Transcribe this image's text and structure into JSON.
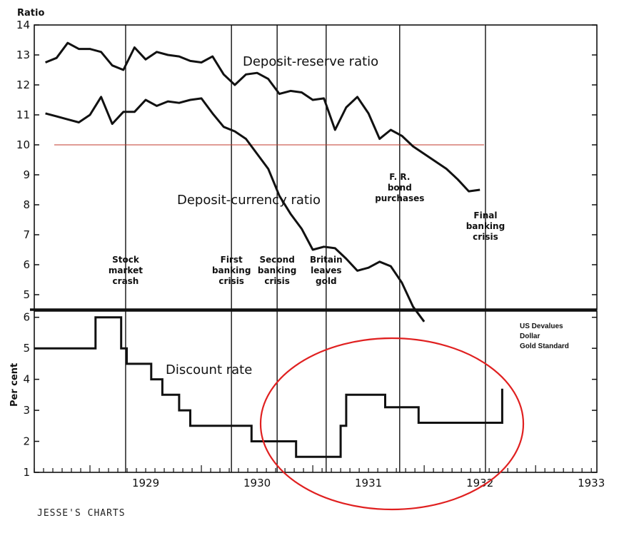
{
  "chart_data": {
    "type": "line",
    "top_panel": {
      "ylabel": "Ratio",
      "ylim": [
        4.5,
        14
      ],
      "y_ticks": [
        "14",
        "13",
        "12",
        "11",
        "10",
        "9",
        "8",
        "7",
        "6",
        "5"
      ],
      "series": [
        {
          "name": "Deposit-reserve ratio",
          "x": [
            1928.6,
            1928.7,
            1928.8,
            1928.9,
            1929.0,
            1929.1,
            1929.2,
            1929.3,
            1929.4,
            1929.5,
            1929.6,
            1929.7,
            1929.8,
            1929.9,
            1930.0,
            1930.1,
            1930.2,
            1930.3,
            1930.4,
            1930.5,
            1930.6,
            1930.7,
            1930.8,
            1930.9,
            1931.0,
            1931.1,
            1931.2,
            1931.3,
            1931.4,
            1931.5,
            1931.6,
            1931.7,
            1931.8,
            1931.9,
            1932.0,
            1932.1,
            1932.2,
            1932.3,
            1932.4,
            1932.5,
            1932.6,
            1932.7
          ],
          "values": [
            12.75,
            12.9,
            13.4,
            13.2,
            13.2,
            13.1,
            12.65,
            12.5,
            13.25,
            12.85,
            13.1,
            13.0,
            12.95,
            12.8,
            12.75,
            12.95,
            12.35,
            12.0,
            12.35,
            12.4,
            12.2,
            11.7,
            11.8,
            11.75,
            11.5,
            11.55,
            10.5,
            11.25,
            11.6,
            11.05,
            10.2,
            10.5,
            10.3,
            9.95,
            9.7,
            9.45,
            9.2,
            8.85,
            8.45,
            8.5,
            null,
            null
          ]
        },
        {
          "name": "Deposit-currency ratio",
          "x": [
            1928.6,
            1928.7,
            1928.8,
            1928.9,
            1929.0,
            1929.1,
            1929.2,
            1929.3,
            1929.4,
            1929.5,
            1929.6,
            1929.7,
            1929.8,
            1929.9,
            1930.0,
            1930.1,
            1930.2,
            1930.3,
            1930.4,
            1930.5,
            1930.6,
            1930.7,
            1930.8,
            1930.9,
            1931.0,
            1931.1,
            1931.2,
            1931.3,
            1931.4,
            1931.5,
            1931.6,
            1931.7,
            1931.8,
            1931.9,
            1932.0,
            1932.1,
            1932.2,
            1932.3,
            1932.4,
            1932.5,
            1932.6,
            1932.7
          ],
          "values": [
            11.05,
            10.95,
            10.85,
            10.75,
            11.0,
            11.6,
            10.7,
            11.1,
            11.1,
            11.5,
            11.3,
            11.45,
            11.4,
            11.5,
            11.55,
            11.05,
            10.6,
            10.45,
            10.2,
            9.7,
            9.2,
            8.3,
            7.7,
            7.2,
            6.5,
            6.6,
            6.55,
            6.2,
            5.8,
            5.9,
            6.1,
            5.95,
            5.4,
            4.6,
            4.1,
            null,
            null,
            null,
            null,
            null,
            null,
            null
          ]
        }
      ],
      "reference_line_value": 10
    },
    "bottom_panel": {
      "ylabel": "Per cent",
      "ylim": [
        1,
        6.2
      ],
      "y_ticks": [
        "6",
        "5",
        "4",
        "3",
        "2",
        "1"
      ],
      "series": [
        {
          "name": "Discount rate",
          "step": true,
          "x": [
            1928.5,
            1929.05,
            1929.05,
            1929.28,
            1929.28,
            1929.33,
            1929.33,
            1929.55,
            1929.55,
            1929.65,
            1929.65,
            1929.8,
            1929.8,
            1929.9,
            1929.9,
            1930.45,
            1930.45,
            1930.85,
            1930.85,
            1931.25,
            1931.25,
            1931.3,
            1931.3,
            1931.65,
            1931.65,
            1931.95,
            1931.95,
            1932.7,
            1932.7
          ],
          "values": [
            5.0,
            5.0,
            6.0,
            6.0,
            5.0,
            5.0,
            4.5,
            4.5,
            4.0,
            4.0,
            3.5,
            3.5,
            3.0,
            3.0,
            2.5,
            2.5,
            2.0,
            2.0,
            1.5,
            1.5,
            2.5,
            2.5,
            3.5,
            3.5,
            3.1,
            3.1,
            2.6,
            2.6,
            3.7
          ]
        }
      ]
    },
    "x_ticks": [
      "1929",
      "1930",
      "1931",
      "1932",
      "1933"
    ],
    "event_lines": [
      {
        "x": 1929.32,
        "label": [
          "Stock",
          "market",
          "crash"
        ]
      },
      {
        "x": 1930.27,
        "label": [
          "First",
          "banking",
          "crisis"
        ]
      },
      {
        "x": 1930.68,
        "label": [
          "Second",
          "banking",
          "crisis"
        ]
      },
      {
        "x": 1931.12,
        "label": [
          "Britain",
          "leaves",
          "gold"
        ]
      },
      {
        "x": 1931.78,
        "label": [
          "F. R.",
          "bond",
          "purchases"
        ]
      },
      {
        "x": 1932.55,
        "label": [
          "Final",
          "banking",
          "crisis"
        ]
      }
    ],
    "annotations": {
      "deposit_reserve": "Deposit-reserve ratio",
      "deposit_currency": "Deposit-currency ratio",
      "discount_rate": "Discount rate",
      "us_devalues": [
        "US Devalues",
        "Dollar",
        "Gold Standard"
      ]
    },
    "highlight": {
      "shape": "ellipse",
      "color": "#e02020"
    },
    "colors": {
      "line": "#111111",
      "reference": "#c0392b",
      "highlight": "#e02020"
    }
  },
  "watermark": "JESSE'S CHARTS"
}
